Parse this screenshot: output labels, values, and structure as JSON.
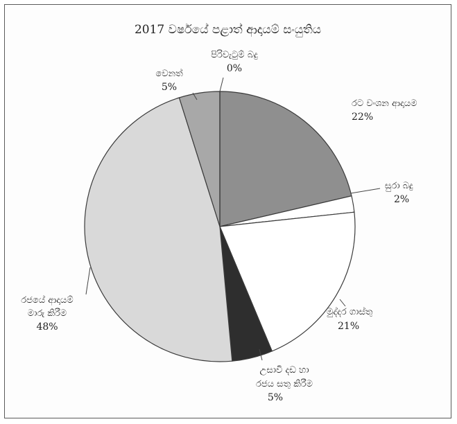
{
  "chart_data": {
    "type": "pie",
    "title": "2017 වර්ෂයේ පළාත් ආදායම් සංයුතිය",
    "slices": [
      {
        "label": "රට වංශන ආදායම",
        "value_label": "22%",
        "value": 22,
        "color": "#8f8f8f"
      },
      {
        "label": "සුරා බදු",
        "value_label": "2%",
        "value": 2,
        "color": "#ffffff"
      },
      {
        "label": "මුද්දර ගාස්තු",
        "value_label": "21%",
        "value": 21,
        "color": "#ffffff"
      },
      {
        "label": "උසාවි දඩ හා රජය සතු කිරීම",
        "value_label": "5%",
        "value": 5,
        "color": "#2e2e2e"
      },
      {
        "label": "රජයේ ආදායම් මාරු කිරීම",
        "value_label": "48%",
        "value": 48,
        "color": "#d9d9d9"
      },
      {
        "label": "වෙනත්",
        "value_label": "5%",
        "value": 5,
        "color": "#a8a8a8"
      },
      {
        "label": "පිරිවැටුම් බදු",
        "value_label": "0%",
        "value": 0,
        "color": "#bdbdbd"
      }
    ]
  }
}
